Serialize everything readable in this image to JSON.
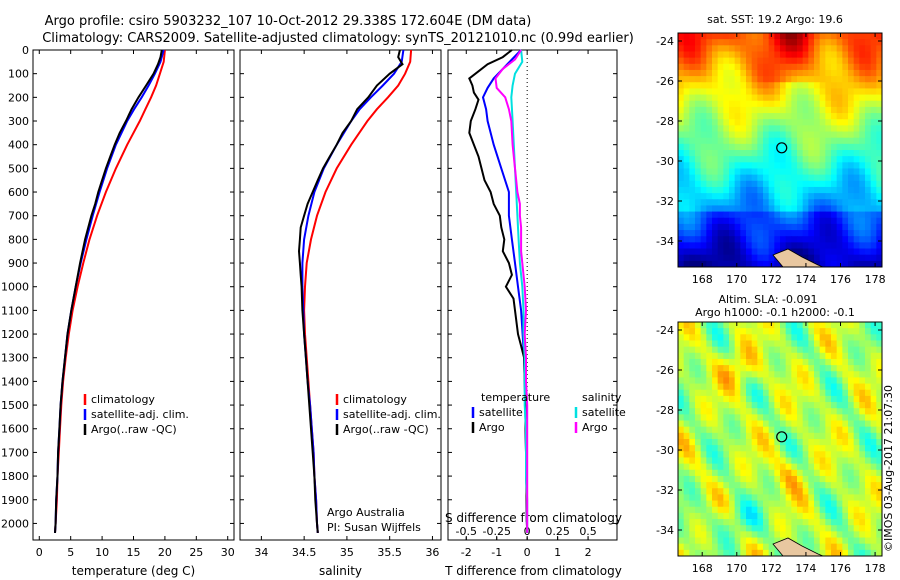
{
  "header": {
    "line1": "Argo profile: csiro 5903232_107 10-Oct-2012 29.338S 172.604E (DM data)",
    "line2": "Climatology: CARS2009. Satellite-adjusted climatology: synTS_20121010.nc (0.99d earlier)"
  },
  "footer": {
    "stamp": "©IMOS 03-Aug-2017 21:07:30"
  },
  "colors": {
    "climatology": "#ff0000",
    "satellite": "#0000ff",
    "argo": "#000000",
    "argo_salinity": "#ff00ff",
    "satellite_salinity": "#00ffff"
  },
  "chart_data": [
    {
      "type": "line",
      "id": "temperature",
      "xlabel": "temperature (deg C)",
      "ylabel": "",
      "xlim": [
        -1,
        31
      ],
      "ylim": [
        2070,
        0
      ],
      "xticks": [
        0,
        5,
        10,
        15,
        20,
        25,
        30
      ],
      "yticks": [
        0,
        100,
        200,
        300,
        400,
        500,
        600,
        700,
        800,
        900,
        1000,
        1100,
        1200,
        1300,
        1400,
        1500,
        1600,
        1700,
        1800,
        1900,
        2000
      ],
      "legend": [
        "climatology",
        "satellite-adj. clim.",
        "Argo(..raw -QC)"
      ],
      "legend_position": "lower-center",
      "series": [
        {
          "name": "climatology",
          "color": "#ff0000",
          "depth": [
            0,
            50,
            100,
            150,
            200,
            250,
            300,
            400,
            500,
            600,
            700,
            800,
            900,
            1000,
            1100,
            1200,
            1300,
            1400,
            1500,
            1600,
            1700,
            1800,
            1900,
            2000,
            2040
          ],
          "values": [
            20.0,
            19.8,
            19.2,
            18.6,
            17.8,
            16.9,
            16.0,
            14.0,
            12.2,
            10.6,
            9.2,
            8.0,
            7.0,
            6.1,
            5.3,
            4.7,
            4.2,
            3.8,
            3.5,
            3.3,
            3.1,
            2.9,
            2.8,
            2.6,
            2.5
          ]
        },
        {
          "name": "satellite-adj. clim.",
          "color": "#0000ff",
          "depth": [
            0,
            50,
            100,
            150,
            200,
            250,
            300,
            400,
            500,
            600,
            700,
            800,
            900,
            1000,
            1100,
            1200,
            1300,
            1400,
            1500,
            1600,
            1700,
            1800,
            1900,
            2000,
            2040
          ],
          "values": [
            19.8,
            19.3,
            18.4,
            17.4,
            16.3,
            15.1,
            14.0,
            12.2,
            10.8,
            9.6,
            8.5,
            7.5,
            6.6,
            5.8,
            5.1,
            4.5,
            4.1,
            3.7,
            3.4,
            3.2,
            3.0,
            2.9,
            2.7,
            2.6,
            2.5
          ]
        },
        {
          "name": "Argo(..raw -QC)",
          "color": "#000000",
          "depth": [
            0,
            30,
            60,
            100,
            150,
            200,
            250,
            300,
            350,
            400,
            450,
            500,
            550,
            600,
            650,
            700,
            800,
            900,
            1000,
            1100,
            1200,
            1300,
            1400,
            1500,
            1600,
            1700,
            1800,
            1900,
            2000,
            2040
          ],
          "values": [
            19.5,
            19.3,
            18.9,
            18.2,
            17.0,
            15.8,
            14.7,
            13.8,
            12.8,
            12.0,
            11.3,
            10.6,
            10.0,
            9.4,
            8.9,
            8.3,
            7.3,
            6.5,
            5.8,
            5.1,
            4.5,
            4.1,
            3.7,
            3.4,
            3.2,
            3.0,
            2.9,
            2.7,
            2.6,
            2.5
          ]
        }
      ]
    },
    {
      "type": "line",
      "id": "salinity",
      "xlabel": "salinity",
      "ylabel": "",
      "xlim": [
        33.75,
        36.1
      ],
      "ylim": [
        2070,
        0
      ],
      "xticks": [
        34,
        34.5,
        35,
        35.5,
        36
      ],
      "legend": [
        "climatology",
        "satellite-adj. clim.",
        "Argo(..raw -QC)"
      ],
      "legend_position": "lower-right",
      "annotation": [
        "Argo Australia",
        "PI: Susan Wijffels"
      ],
      "series": [
        {
          "name": "climatology",
          "color": "#ff0000",
          "depth": [
            0,
            50,
            100,
            150,
            200,
            250,
            300,
            400,
            500,
            600,
            700,
            800,
            900,
            1000,
            1100,
            1200,
            1300,
            1400,
            1500,
            1600,
            1700,
            1800,
            1900,
            2000,
            2040
          ],
          "values": [
            35.75,
            35.74,
            35.68,
            35.6,
            35.48,
            35.35,
            35.24,
            35.05,
            34.88,
            34.75,
            34.65,
            34.58,
            34.53,
            34.51,
            34.5,
            34.51,
            34.53,
            34.55,
            34.57,
            34.59,
            34.61,
            34.62,
            34.64,
            34.65,
            34.66
          ]
        },
        {
          "name": "satellite-adj. clim.",
          "color": "#0000ff",
          "depth": [
            0,
            50,
            100,
            150,
            200,
            250,
            300,
            400,
            500,
            600,
            700,
            800,
            900,
            1000,
            1100,
            1200,
            1300,
            1400,
            1500,
            1600,
            1700,
            1800,
            1900,
            2000,
            2040
          ],
          "values": [
            35.66,
            35.64,
            35.55,
            35.42,
            35.28,
            35.15,
            35.05,
            34.88,
            34.73,
            34.62,
            34.55,
            34.5,
            34.48,
            34.48,
            34.49,
            34.5,
            34.52,
            34.54,
            34.57,
            34.59,
            34.61,
            34.62,
            34.64,
            34.65,
            34.66
          ]
        },
        {
          "name": "Argo(..raw -QC)",
          "color": "#000000",
          "depth": [
            0,
            30,
            60,
            100,
            150,
            200,
            250,
            300,
            350,
            400,
            450,
            500,
            550,
            600,
            650,
            700,
            750,
            800,
            850,
            900,
            950,
            1000,
            1100,
            1200,
            1300,
            1400,
            1500,
            1600,
            1700,
            1800,
            1900,
            2000,
            2040
          ],
          "values": [
            35.62,
            35.6,
            35.65,
            35.5,
            35.35,
            35.25,
            35.12,
            35.05,
            34.95,
            34.88,
            34.8,
            34.72,
            34.66,
            34.6,
            34.54,
            34.5,
            34.46,
            34.45,
            34.44,
            34.45,
            34.46,
            34.47,
            34.48,
            34.5,
            34.52,
            34.54,
            34.56,
            34.58,
            34.6,
            34.62,
            34.63,
            34.65,
            34.66
          ]
        }
      ]
    },
    {
      "type": "line",
      "id": "differences",
      "xlabel": "T difference from climatology",
      "xlabel_secondary": "S difference from climatology",
      "ylabel": "",
      "xlim": [
        -2.6,
        2.95
      ],
      "ylim": [
        2070,
        0
      ],
      "xticks": [
        -2,
        -1,
        0,
        1,
        2
      ],
      "xticks_secondary": [
        {
          "value": -0.5,
          "label": "-0.5"
        },
        {
          "value": -0.25,
          "label": "-0.25"
        },
        {
          "value": 0,
          "label": "0"
        },
        {
          "value": 0.25,
          "label": "0.25"
        },
        {
          "value": 0.5,
          "label": "0.5"
        }
      ],
      "secondary_scale": 4,
      "legend_groups": [
        {
          "title": "temperature",
          "entries": [
            "satellite",
            "Argo"
          ]
        },
        {
          "title": "salinity",
          "entries": [
            "satellite",
            "Argo"
          ]
        }
      ],
      "legend_position": "lower-center",
      "series": [
        {
          "name": "temperature satellite",
          "color": "#0000ff",
          "scale": "T",
          "depth": [
            0,
            40,
            80,
            120,
            160,
            200,
            250,
            300,
            400,
            500,
            600,
            700,
            800,
            900,
            1000,
            1100,
            1200,
            1300,
            1400,
            1500,
            1600,
            1700,
            1800,
            1900,
            2000,
            2040
          ],
          "values": [
            -0.2,
            -0.5,
            -0.8,
            -1.1,
            -1.3,
            -1.45,
            -1.35,
            -1.3,
            -1.1,
            -0.85,
            -0.6,
            -0.6,
            -0.5,
            -0.4,
            -0.3,
            -0.2,
            -0.15,
            -0.1,
            -0.08,
            -0.06,
            -0.05,
            -0.04,
            -0.03,
            -0.02,
            -0.01,
            0
          ]
        },
        {
          "name": "temperature Argo",
          "color": "#000000",
          "scale": "T",
          "depth": [
            0,
            30,
            60,
            90,
            120,
            150,
            180,
            210,
            250,
            300,
            350,
            400,
            450,
            500,
            550,
            600,
            650,
            700,
            750,
            800,
            850,
            900,
            950,
            1000,
            1050,
            1100,
            1150,
            1200,
            1250,
            1300,
            1400,
            1500,
            1600,
            1700,
            1800,
            1900,
            2000,
            2040
          ],
          "values": [
            -0.5,
            -0.8,
            -1.3,
            -1.6,
            -1.9,
            -1.8,
            -1.75,
            -1.6,
            -1.7,
            -1.85,
            -1.9,
            -1.75,
            -1.6,
            -1.5,
            -1.4,
            -1.2,
            -1.1,
            -0.9,
            -0.85,
            -0.75,
            -0.8,
            -0.6,
            -0.5,
            -0.7,
            -0.45,
            -0.4,
            -0.35,
            -0.3,
            -0.2,
            -0.1,
            -0.08,
            -0.06,
            -0.05,
            -0.04,
            -0.03,
            -0.02,
            -0.01,
            0
          ]
        },
        {
          "name": "salinity satellite",
          "color": "#00e0e0",
          "scale": "S",
          "depth": [
            0,
            50,
            100,
            150,
            200,
            300,
            400,
            500,
            600,
            700,
            800,
            900,
            1000,
            1100,
            1200,
            1300,
            1400,
            1500,
            1600,
            1700,
            1800,
            1900,
            2000,
            2040
          ],
          "values": [
            -0.05,
            -0.04,
            -0.1,
            -0.12,
            -0.13,
            -0.12,
            -0.11,
            -0.1,
            -0.09,
            -0.08,
            -0.07,
            -0.06,
            -0.04,
            -0.03,
            -0.03,
            -0.02,
            -0.02,
            -0.02,
            -0.01,
            -0.01,
            -0.01,
            0,
            0,
            0
          ]
        },
        {
          "name": "salinity Argo",
          "color": "#ff00ff",
          "scale": "S",
          "depth": [
            0,
            40,
            80,
            120,
            160,
            200,
            250,
            300,
            400,
            500,
            600,
            650,
            700,
            750,
            800,
            850,
            900,
            950,
            1000,
            1100,
            1200,
            1300,
            1400,
            1500,
            1600,
            1700,
            1800,
            1900,
            2000,
            2040
          ],
          "values": [
            -0.05,
            -0.1,
            -0.2,
            -0.26,
            -0.25,
            -0.18,
            -0.15,
            -0.13,
            -0.12,
            -0.1,
            -0.08,
            -0.06,
            -0.06,
            -0.05,
            -0.05,
            -0.05,
            -0.04,
            -0.03,
            -0.02,
            -0.01,
            -0.02,
            -0.01,
            -0.01,
            0,
            0,
            0,
            0,
            0,
            0,
            0
          ]
        }
      ]
    },
    {
      "type": "heatmap",
      "id": "sst-map",
      "title": "sat. SST: 19.2  Argo: 19.6",
      "xlim": [
        166.6,
        178.4
      ],
      "ylim": [
        -35.3,
        -23.6
      ],
      "xticks": [
        168,
        170,
        172,
        174,
        176,
        178
      ],
      "yticks": [
        -24,
        -26,
        -28,
        -30,
        -32,
        -34
      ],
      "profile_marker": {
        "lon": 172.6,
        "lat": -29.34
      },
      "colormap": "jet",
      "value_range": [
        14,
        24
      ]
    },
    {
      "type": "heatmap",
      "id": "sla-map",
      "title": "Altim. SLA: -0.091",
      "subtitle": "Argo h1000: -0.1 h2000: -0.1",
      "xlim": [
        166.6,
        178.4
      ],
      "ylim": [
        -35.3,
        -23.6
      ],
      "xticks": [
        168,
        170,
        172,
        174,
        176,
        178
      ],
      "yticks": [
        -24,
        -26,
        -28,
        -30,
        -32,
        -34
      ],
      "profile_marker": {
        "lon": 172.6,
        "lat": -29.34
      },
      "colormap": "jet",
      "value_range": [
        -0.5,
        0.5
      ]
    }
  ]
}
